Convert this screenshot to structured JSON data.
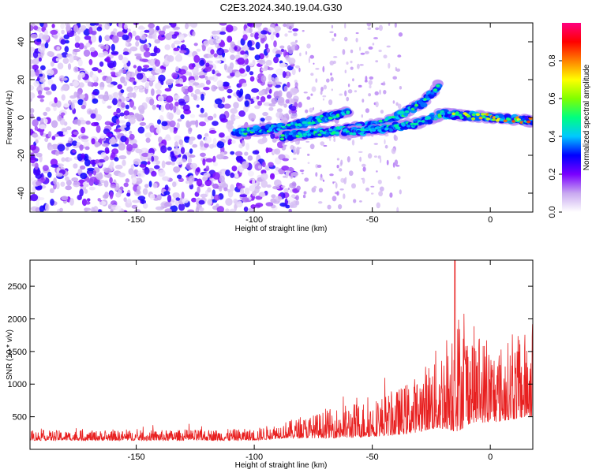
{
  "figure": {
    "title": "C2E3.2024.340.19.04.G30"
  },
  "chart_data": [
    {
      "type": "heatmap",
      "xlabel": "Height of straight line (km)",
      "ylabel": "Frequency (Hz)",
      "xlim": [
        -195,
        18
      ],
      "ylim": [
        -50,
        50
      ],
      "xticks": [
        -150,
        -100,
        -50,
        0
      ],
      "yticks": [
        -40,
        -20,
        0,
        20,
        40
      ],
      "colorbar": {
        "label": "Normalized spectral amplitude",
        "range": [
          0,
          1
        ],
        "ticks": [
          0.0,
          0.2,
          0.4,
          0.6,
          0.8
        ],
        "colormap": [
          "#ffffff",
          "#c8a8f0",
          "#7a00ff",
          "#0000ff",
          "#00c8ff",
          "#00ff80",
          "#80ff00",
          "#ffff00",
          "#ff8000",
          "#ff0000",
          "#ff0080"
        ]
      },
      "features": {
        "noise_region_x": [
          -195,
          -88
        ],
        "noise_amplitude": [
          0.05,
          0.3
        ],
        "branches": [
          {
            "x": [
              -108,
              -85,
              -70,
              -60
            ],
            "y": [
              -8,
              -5,
              0,
              3
            ],
            "peak_amplitude": 0.55
          },
          {
            "x": [
              -88,
              -65,
              -45,
              -28,
              -22
            ],
            "y": [
              -10,
              -7,
              -3,
              8,
              17
            ],
            "peak_amplitude": 0.55
          },
          {
            "x": [
              -62,
              -45,
              -30,
              -22
            ],
            "y": [
              -8,
              -6,
              -3,
              1
            ],
            "peak_amplitude": 0.5
          },
          {
            "x": [
              -22,
              -10,
              0,
              10,
              18
            ],
            "y": [
              2,
              1,
              0,
              -1,
              -2
            ],
            "peak_amplitude": 0.95
          }
        ]
      }
    },
    {
      "type": "line",
      "xlabel": "Height of straight line (km)",
      "ylabel": "SNR (10 * v/v)",
      "xlim": [
        -195,
        18
      ],
      "ylim": [
        0,
        2900
      ],
      "xticks": [
        -150,
        -100,
        -50,
        0
      ],
      "yticks": [
        500,
        1000,
        1500,
        2000,
        2500
      ],
      "color": "#e82020",
      "envelope": {
        "x": [
          -195,
          -150,
          -100,
          -88,
          -75,
          -68,
          -60,
          -50,
          -40,
          -32,
          -25,
          -18,
          -15,
          -12,
          -8,
          -5,
          0,
          5,
          10,
          15,
          18
        ],
        "baseline": [
          190,
          190,
          200,
          260,
          300,
          330,
          360,
          400,
          460,
          560,
          700,
          850,
          950,
          950,
          950,
          900,
          850,
          850,
          900,
          950,
          1000
        ],
        "amplitude": [
          110,
          110,
          130,
          180,
          260,
          320,
          380,
          420,
          500,
          620,
          800,
          1100,
          1400,
          1300,
          1100,
          1000,
          900,
          850,
          900,
          950,
          1000
        ]
      },
      "peak": {
        "x": -15,
        "y": 2900
      }
    }
  ]
}
